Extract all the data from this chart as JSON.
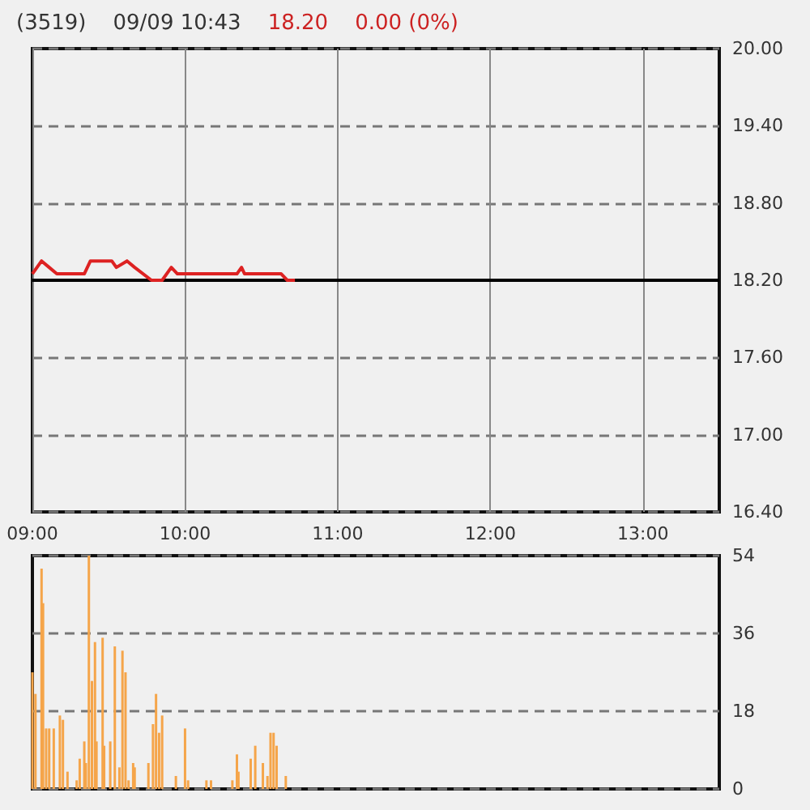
{
  "chart_data": [
    {
      "type": "line",
      "title": "(3519)",
      "subtitle": "09/09 10:43",
      "annotations": [
        "18.20",
        "0.00 (0%)"
      ],
      "x": [
        9.0,
        9.06,
        9.11,
        9.16,
        9.34,
        9.38,
        9.52,
        9.55,
        9.62,
        9.67,
        9.78,
        9.85,
        9.91,
        9.95,
        10.34,
        10.37,
        10.39,
        10.63,
        10.67,
        10.72
      ],
      "series": [
        {
          "color": "#dd2222",
          "values": [
            18.25,
            18.35,
            18.3,
            18.25,
            18.25,
            18.35,
            18.35,
            18.3,
            18.35,
            18.3,
            18.2,
            18.2,
            18.3,
            18.25,
            18.25,
            18.3,
            18.25,
            18.25,
            18.2,
            18.2
          ]
        }
      ],
      "xlim": [
        9,
        13.5
      ],
      "xticks": [
        {
          "value": 9,
          "label": "09:00"
        },
        {
          "value": 10,
          "label": "10:00"
        },
        {
          "value": 11,
          "label": "11:00"
        },
        {
          "value": 12,
          "label": "12:00"
        },
        {
          "value": 13,
          "label": "13:00"
        }
      ],
      "ylim": [
        16.4,
        20
      ],
      "yticks": [
        {
          "value": 16.4,
          "label": "16.40"
        },
        {
          "value": 17,
          "label": "17.00"
        },
        {
          "value": 17.6,
          "label": "17.60"
        },
        {
          "value": 18.2,
          "label": "18.20"
        },
        {
          "value": 18.8,
          "label": "18.80"
        },
        {
          "value": 19.4,
          "label": "19.40"
        },
        {
          "value": 20,
          "label": "20.00"
        }
      ],
      "ref_lines": [
        {
          "axis": "y",
          "value": 18.2,
          "color": "#000000"
        }
      ],
      "grid": true
    },
    {
      "type": "bar",
      "x": [
        9.0,
        9.02,
        9.06,
        9.07,
        9.09,
        9.11,
        9.14,
        9.18,
        9.2,
        9.23,
        9.29,
        9.31,
        9.34,
        9.35,
        9.37,
        9.39,
        9.41,
        9.42,
        9.46,
        9.47,
        9.51,
        9.54,
        9.57,
        9.59,
        9.61,
        9.63,
        9.66,
        9.67,
        9.76,
        9.79,
        9.81,
        9.83,
        9.85,
        9.94,
        10.0,
        10.02,
        10.14,
        10.17,
        10.31,
        10.34,
        10.35,
        10.43,
        10.46,
        10.51,
        10.54,
        10.56,
        10.58,
        10.6,
        10.66
      ],
      "series": [
        {
          "color": "#f5a54a",
          "values": [
            27,
            22,
            51,
            43,
            14,
            14,
            14,
            17,
            16,
            4,
            2,
            7,
            11,
            6,
            54,
            25,
            34,
            11,
            35,
            10,
            11,
            33,
            5,
            32,
            27,
            2,
            6,
            5,
            6,
            15,
            22,
            13,
            17,
            3,
            14,
            2,
            2,
            2,
            2,
            8,
            4,
            7,
            10,
            6,
            3,
            13,
            13,
            10,
            3
          ]
        }
      ],
      "xlim": [
        9,
        13.5
      ],
      "ylim": [
        0,
        54
      ],
      "yticks": [
        0,
        18,
        36,
        54
      ],
      "tick_labels": "y",
      "grid": "y"
    }
  ]
}
